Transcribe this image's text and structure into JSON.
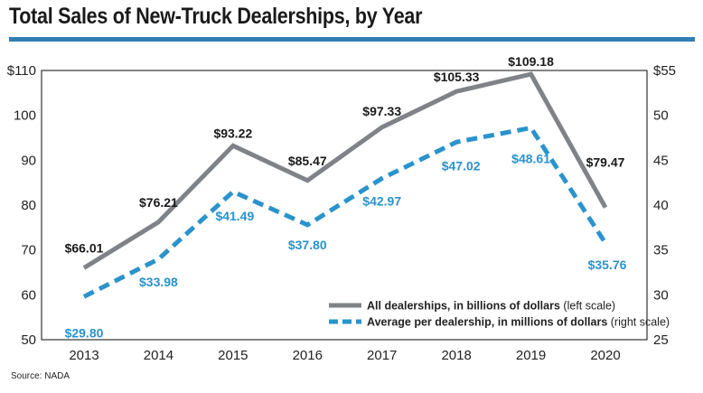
{
  "title": "Total Sales of New-Truck Dealerships, by Year",
  "source": "Source: NADA",
  "colors": {
    "accent": "#2f7fb3",
    "series_total": "#7f8387",
    "series_avg": "#2a93cc"
  },
  "chart_data": {
    "type": "line",
    "x": [
      "2013",
      "2014",
      "2015",
      "2016",
      "2017",
      "2018",
      "2019",
      "2020"
    ],
    "ylim_left": [
      50,
      110
    ],
    "ylim_right": [
      25,
      55
    ],
    "yticks_left": [
      "$110",
      "100",
      "90",
      "80",
      "70",
      "60",
      "50"
    ],
    "yticks_right": [
      "$55",
      "50",
      "45",
      "40",
      "35",
      "30",
      "25"
    ],
    "legend_position": "bottom-right",
    "grid": false,
    "series": [
      {
        "name": "All dealerships, in billions of dollars",
        "name_note": "(left scale)",
        "axis": "left",
        "style": "solid",
        "color": "#7f8387",
        "values": [
          66.01,
          76.21,
          93.22,
          85.47,
          97.33,
          105.33,
          109.18,
          79.47
        ],
        "labels": [
          "$66.01",
          "$76.21",
          "$93.22",
          "$85.47",
          "$97.33",
          "$105.33",
          "$109.18",
          "$79.47"
        ]
      },
      {
        "name": "Average per dealership, in millions of dollars",
        "name_note": "(right scale)",
        "axis": "right",
        "style": "dashed",
        "color": "#2a93cc",
        "values": [
          29.8,
          33.98,
          41.49,
          37.8,
          42.97,
          47.02,
          48.61,
          35.76
        ],
        "labels": [
          "$29.80",
          "$33.98",
          "$41.49",
          "$37.80",
          "$42.97",
          "$47.02",
          "$48.61",
          "$35.76"
        ]
      }
    ]
  }
}
